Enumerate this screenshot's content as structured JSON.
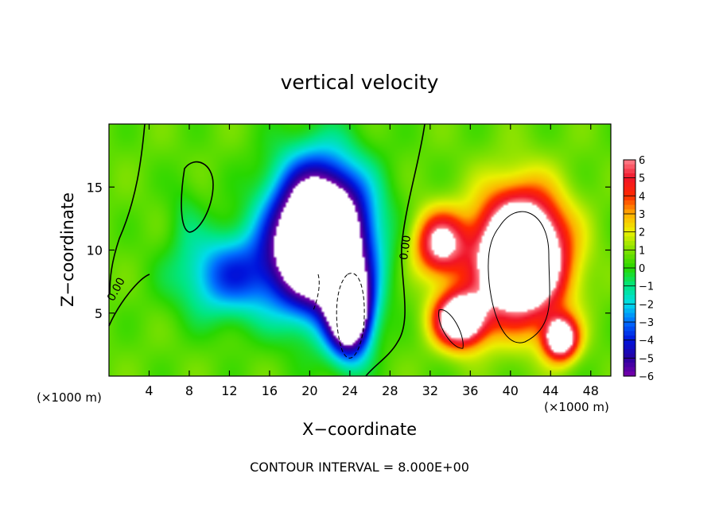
{
  "chart_data": {
    "type": "heatmap",
    "title": "vertical velocity",
    "xlabel": "X−coordinate",
    "ylabel": "Z−coordinate",
    "x_unit_left": "(×1000 m)",
    "x_unit_right": "(×1000 m)",
    "footer": "CONTOUR INTERVAL = 8.000E+00",
    "xlim": [
      0,
      50
    ],
    "ylim": [
      0,
      20
    ],
    "x_ticks": [
      4,
      8,
      12,
      16,
      20,
      24,
      28,
      32,
      36,
      40,
      44,
      48
    ],
    "x_tick_labels": [
      "4",
      "8",
      "12",
      "16",
      "20",
      "24",
      "28",
      "32",
      "36",
      "40",
      "44",
      "48"
    ],
    "y_ticks": [
      5,
      10,
      15
    ],
    "y_tick_labels": [
      "5",
      "10",
      "15"
    ],
    "colorbar": {
      "min": -6,
      "max": 6,
      "ticks": [
        6,
        5,
        4,
        3,
        2,
        1,
        0,
        -1,
        -2,
        -3,
        -4,
        -5,
        -6
      ],
      "tick_labels": [
        "6",
        "5",
        "4",
        "3",
        "2",
        "1",
        "0",
        "−1",
        "−2",
        "−3",
        "−4",
        "−5",
        "−6"
      ],
      "over_color": "#ffffff",
      "under_color": "#ffffff"
    },
    "contour_labels": [
      "0.00",
      "0.00"
    ],
    "field_features": [
      {
        "kind": "downdraft",
        "center": [
          21,
          11
        ],
        "radius": [
          5.5,
          6.5
        ],
        "peak": -14
      },
      {
        "kind": "downdraft",
        "center": [
          12,
          8
        ],
        "radius": [
          6,
          4
        ],
        "peak": -4
      },
      {
        "kind": "downdraft",
        "center": [
          24,
          5
        ],
        "radius": [
          2.5,
          4
        ],
        "peak": -10
      },
      {
        "kind": "updraft",
        "center": [
          41,
          9.5
        ],
        "radius": [
          5,
          5.5
        ],
        "peak": 13
      },
      {
        "kind": "updraft",
        "center": [
          35,
          4.5
        ],
        "radius": [
          3,
          2.5
        ],
        "peak": 9
      },
      {
        "kind": "updraft",
        "center": [
          45,
          3
        ],
        "radius": [
          2,
          2
        ],
        "peak": 8
      },
      {
        "kind": "updraft",
        "center": [
          33,
          10.5
        ],
        "radius": [
          3,
          3
        ],
        "peak": 6
      },
      {
        "kind": "weak_negative",
        "center": [
          7.5,
          13
        ],
        "radius": [
          2,
          3.5
        ],
        "peak": -0.8
      }
    ]
  }
}
